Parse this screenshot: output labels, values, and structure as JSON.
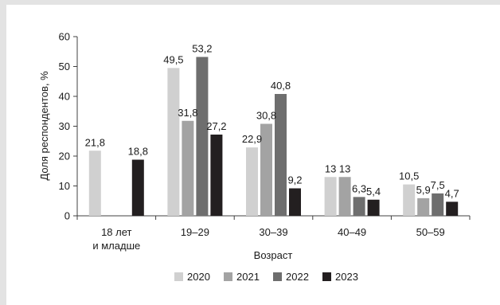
{
  "chart_data": {
    "type": "bar",
    "categories": [
      [
        "18 лет",
        "и младше"
      ],
      [
        "19–29"
      ],
      [
        "30–39"
      ],
      [
        "40–49"
      ],
      [
        "50–59"
      ]
    ],
    "series": [
      {
        "name": "2020",
        "color": "#d0d0d0",
        "values": [
          21.8,
          49.5,
          22.9,
          13,
          10.5
        ],
        "labels": [
          "21,8",
          "49,5",
          "22,9",
          "13",
          "10,5"
        ]
      },
      {
        "name": "2021",
        "color": "#a3a3a3",
        "values": [
          null,
          31.8,
          30.8,
          13,
          5.9
        ],
        "labels": [
          "",
          "31,8",
          "30,8",
          "13",
          "5,9"
        ]
      },
      {
        "name": "2022",
        "color": "#6e6e6e",
        "values": [
          null,
          53.2,
          40.8,
          6.3,
          7.5
        ],
        "labels": [
          "",
          "53,2",
          "40,8",
          "6,3",
          "7,5"
        ]
      },
      {
        "name": "2023",
        "color": "#231f20",
        "values": [
          18.8,
          27.2,
          9.2,
          5.4,
          4.7
        ],
        "labels": [
          "18,8",
          "27,2",
          "9,2",
          "5,4",
          "4,7"
        ]
      }
    ],
    "xlabel": "Возраст",
    "ylabel": "Доля респондентов, %",
    "ylim": [
      0,
      60
    ],
    "yticks": [
      0,
      10,
      20,
      30,
      40,
      50,
      60
    ],
    "grid": false,
    "legend_position": "bottom"
  }
}
